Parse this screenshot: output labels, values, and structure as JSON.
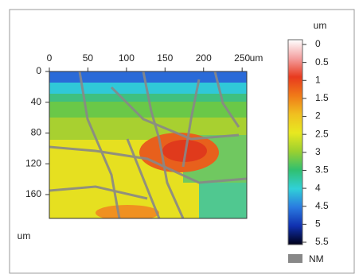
{
  "chart_data": {
    "type": "heatmap",
    "x_unit": "um",
    "y_unit": "um",
    "xlim": [
      0,
      256
    ],
    "xticks": [
      0,
      50,
      100,
      150,
      200,
      250
    ],
    "ylim": [
      0,
      191
    ],
    "yticks": [
      0,
      40,
      80,
      120,
      160
    ],
    "colorbar": {
      "unit": "um",
      "lim": [
        0,
        5.5
      ],
      "ticks": [
        0,
        0.5,
        1,
        1.5,
        2,
        2.5,
        3,
        3.5,
        4,
        4.5,
        5,
        5.5
      ],
      "colormap": [
        "#ffffff",
        "#f4a0a0",
        "#e83a1e",
        "#f07a18",
        "#f0c020",
        "#e8e820",
        "#9ad030",
        "#30c070",
        "#30d0d8",
        "#2a7ae0",
        "#1030b0",
        "#000018"
      ]
    },
    "legend": {
      "label": "NM",
      "color": "#888888"
    }
  }
}
